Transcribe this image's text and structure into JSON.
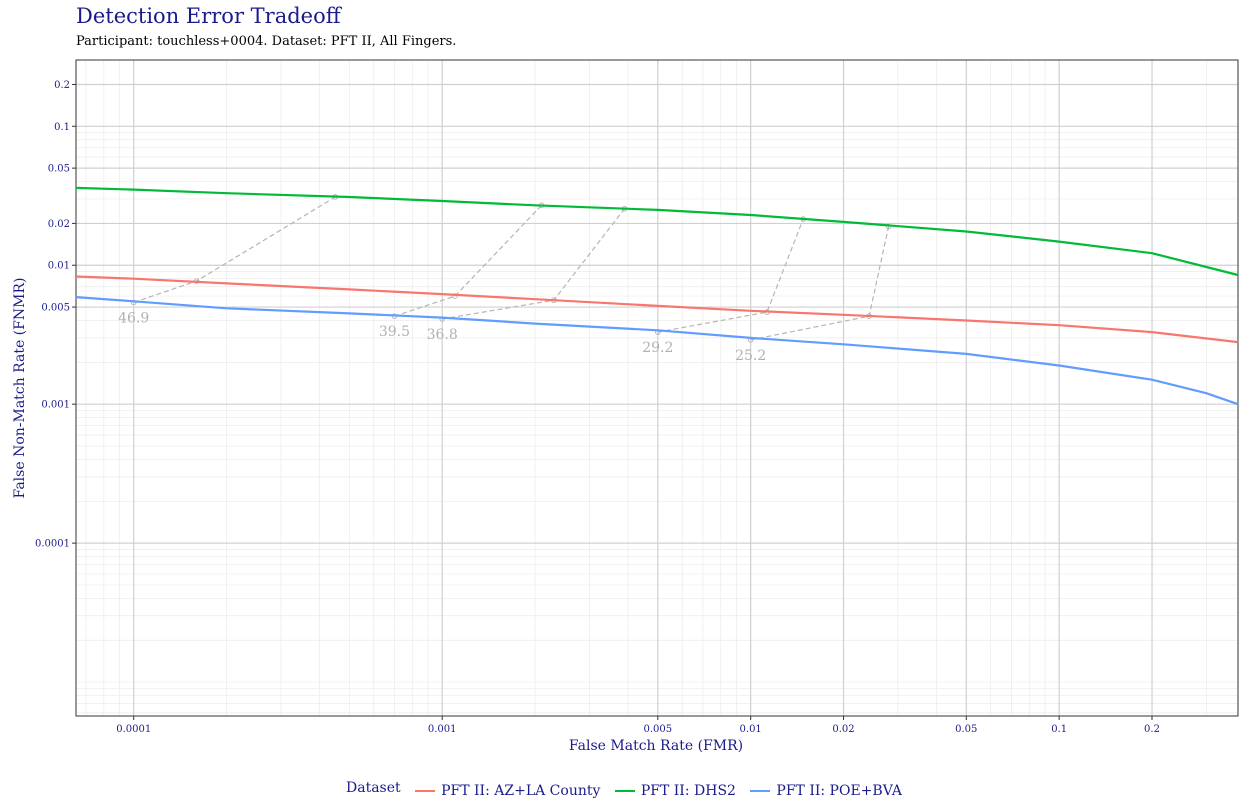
{
  "title": "Detection Error Tradeoff",
  "subtitle": "Participant: touchless+0004. Dataset: PFT II, All Fingers.",
  "chart_data": {
    "type": "line",
    "title": "Detection Error Tradeoff",
    "subtitle": "Participant: touchless+0004. Dataset: PFT II, All Fingers.",
    "xlabel": "False Match Rate (FMR)",
    "ylabel": "False Non-Match Rate (FNMR)",
    "x_scale": "log",
    "y_scale": "log",
    "xlim": [
      6.5e-05,
      0.38
    ],
    "ylim": [
      5.7e-06,
      0.3
    ],
    "grid": true,
    "legend_position": "bottom",
    "x_ticks": [
      0.0001,
      0.001,
      0.005,
      0.01,
      0.02,
      0.05,
      0.1,
      0.2
    ],
    "x_tick_labels": [
      "0.0001",
      "0.001",
      "0.005",
      "0.01",
      "0.02",
      "0.05",
      "0.1",
      "0.2"
    ],
    "y_ticks": [
      0.2,
      0.1,
      0.05,
      0.02,
      0.01,
      0.005,
      0.001,
      0.0001
    ],
    "y_tick_labels": [
      "0.2",
      "0.1",
      "0.05",
      "0.02",
      "0.01",
      "0.005",
      "0.001",
      "0.0001"
    ],
    "legend_title": "Dataset",
    "series": [
      {
        "name": "PFT II: AZ+LA County",
        "color": "#f8766d",
        "points": [
          [
            6.5e-05,
            0.0083
          ],
          [
            0.0001,
            0.008
          ],
          [
            0.0002,
            0.0074
          ],
          [
            0.0005,
            0.0067
          ],
          [
            0.001,
            0.0062
          ],
          [
            0.002,
            0.0057
          ],
          [
            0.005,
            0.0051
          ],
          [
            0.01,
            0.0047
          ],
          [
            0.02,
            0.0044
          ],
          [
            0.05,
            0.004
          ],
          [
            0.1,
            0.0037
          ],
          [
            0.2,
            0.0033
          ],
          [
            0.38,
            0.0028
          ]
        ]
      },
      {
        "name": "PFT II: DHS2",
        "color": "#00ba38",
        "points": [
          [
            6.5e-05,
            0.036
          ],
          [
            0.0001,
            0.035
          ],
          [
            0.0002,
            0.033
          ],
          [
            0.0005,
            0.031
          ],
          [
            0.001,
            0.029
          ],
          [
            0.002,
            0.027
          ],
          [
            0.005,
            0.025
          ],
          [
            0.01,
            0.023
          ],
          [
            0.02,
            0.0205
          ],
          [
            0.05,
            0.0175
          ],
          [
            0.1,
            0.0148
          ],
          [
            0.2,
            0.0122
          ],
          [
            0.38,
            0.0085
          ]
        ]
      },
      {
        "name": "PFT II: POE+BVA",
        "color": "#619cff",
        "points": [
          [
            6.5e-05,
            0.0059
          ],
          [
            0.0001,
            0.0055
          ],
          [
            0.0002,
            0.0049
          ],
          [
            0.0005,
            0.0045
          ],
          [
            0.001,
            0.0042
          ],
          [
            0.002,
            0.0038
          ],
          [
            0.005,
            0.0034
          ],
          [
            0.01,
            0.003
          ],
          [
            0.02,
            0.0027
          ],
          [
            0.05,
            0.0023
          ],
          [
            0.1,
            0.0019
          ],
          [
            0.2,
            0.0015
          ],
          [
            0.3,
            0.0012
          ],
          [
            0.38,
            0.001
          ]
        ]
      }
    ],
    "threshold_links": [
      {
        "label": "46.9",
        "points": [
          [
            0.0001,
            0.0054
          ],
          [
            0.00016,
            0.0077
          ],
          [
            0.00045,
            0.031
          ]
        ]
      },
      {
        "label": "39.5",
        "points": [
          [
            0.0007,
            0.0043
          ],
          [
            0.0011,
            0.006
          ],
          [
            0.0021,
            0.027
          ]
        ]
      },
      {
        "label": "36.8",
        "points": [
          [
            0.001,
            0.0041
          ],
          [
            0.0023,
            0.0056
          ],
          [
            0.0039,
            0.0255
          ]
        ]
      },
      {
        "label": "29.2",
        "points": [
          [
            0.005,
            0.0033
          ],
          [
            0.0113,
            0.0046
          ],
          [
            0.0148,
            0.0215
          ]
        ]
      },
      {
        "label": "25.2",
        "points": [
          [
            0.01,
            0.0029
          ],
          [
            0.0242,
            0.0043
          ],
          [
            0.028,
            0.019
          ]
        ]
      }
    ]
  }
}
